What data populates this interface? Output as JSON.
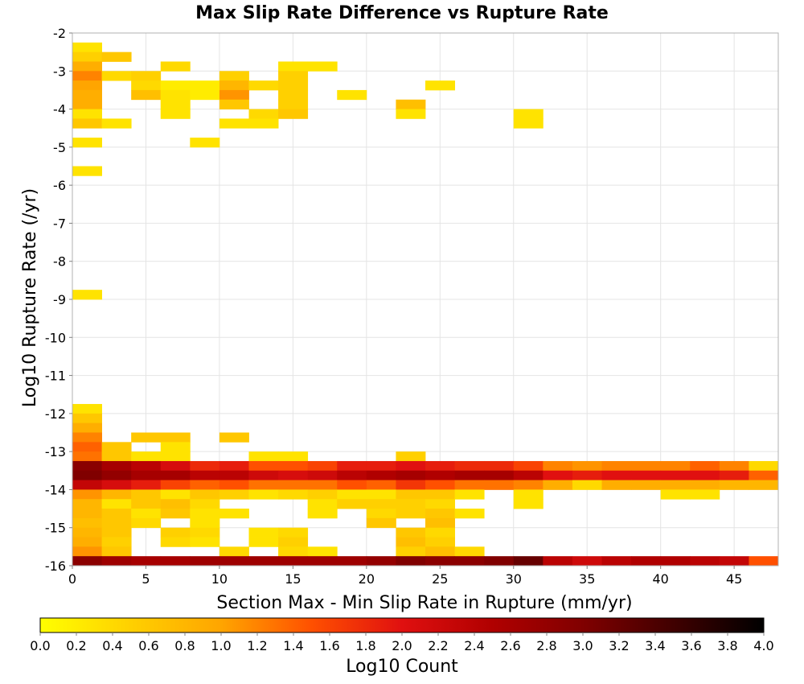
{
  "chart_data": {
    "type": "heatmap",
    "title": "Max Slip Rate Difference vs Rupture Rate",
    "xlabel": "Section Max - Min Slip Rate in Rupture (mm/yr)",
    "ylabel": "Log10 Rupture Rate (/yr)",
    "xlim": [
      0,
      48
    ],
    "ylim": [
      -16,
      -2
    ],
    "x_bin_width": 2,
    "y_bin_height": 0.25,
    "x_ticks": [
      "0",
      "5",
      "10",
      "15",
      "20",
      "25",
      "30",
      "35",
      "40",
      "45"
    ],
    "y_ticks": [
      "-2",
      "-3",
      "-4",
      "-5",
      "-6",
      "-7",
      "-8",
      "-9",
      "-10",
      "-11",
      "-12",
      "-13",
      "-14",
      "-15",
      "-16"
    ],
    "grid": true,
    "colorbar": {
      "label": "Log10 Count",
      "min": 0,
      "max": 4,
      "ticks": [
        "0.0",
        "0.2",
        "0.4",
        "0.6",
        "0.8",
        "1.0",
        "1.2",
        "1.4",
        "1.6",
        "1.8",
        "2.0",
        "2.2",
        "2.4",
        "2.6",
        "2.8",
        "3.0",
        "3.2",
        "3.4",
        "3.6",
        "3.8",
        "4.0"
      ],
      "palette": [
        "#ffff00",
        "#ffd000",
        "#ffa500",
        "#ff5000",
        "#e01010",
        "#b00000",
        "#800000",
        "#400000",
        "#000000"
      ]
    },
    "columns": [
      "x_left",
      "y_bottom",
      "log10_count"
    ],
    "cells": [
      [
        0,
        -2.5,
        0.3
      ],
      [
        0,
        -2.75,
        0.5
      ],
      [
        2,
        -2.75,
        0.6
      ],
      [
        0,
        -3.0,
        0.9
      ],
      [
        6,
        -3.0,
        0.4
      ],
      [
        14,
        -3.0,
        0.3
      ],
      [
        16,
        -3.0,
        0.3
      ],
      [
        0,
        -3.25,
        1.2
      ],
      [
        2,
        -3.25,
        0.4
      ],
      [
        4,
        -3.25,
        0.5
      ],
      [
        10,
        -3.25,
        0.5
      ],
      [
        14,
        -3.25,
        0.5
      ],
      [
        0,
        -3.5,
        1.0
      ],
      [
        4,
        -3.5,
        0.4
      ],
      [
        6,
        -3.5,
        0.2
      ],
      [
        8,
        -3.5,
        0.2
      ],
      [
        10,
        -3.5,
        0.8
      ],
      [
        12,
        -3.5,
        0.4
      ],
      [
        14,
        -3.5,
        0.5
      ],
      [
        24,
        -3.5,
        0.3
      ],
      [
        0,
        -3.75,
        0.9
      ],
      [
        4,
        -3.75,
        0.7
      ],
      [
        6,
        -3.75,
        0.3
      ],
      [
        8,
        -3.75,
        0.2
      ],
      [
        10,
        -3.75,
        1.1
      ],
      [
        14,
        -3.75,
        0.5
      ],
      [
        18,
        -3.75,
        0.3
      ],
      [
        0,
        -4.0,
        0.9
      ],
      [
        6,
        -4.0,
        0.3
      ],
      [
        10,
        -4.0,
        0.6
      ],
      [
        14,
        -4.0,
        0.5
      ],
      [
        22,
        -4.0,
        0.7
      ],
      [
        0,
        -4.25,
        0.3
      ],
      [
        6,
        -4.25,
        0.3
      ],
      [
        12,
        -4.25,
        0.4
      ],
      [
        14,
        -4.25,
        0.6
      ],
      [
        22,
        -4.25,
        0.3
      ],
      [
        30,
        -4.25,
        0.3
      ],
      [
        0,
        -4.5,
        0.6
      ],
      [
        2,
        -4.5,
        0.3
      ],
      [
        10,
        -4.5,
        0.3
      ],
      [
        12,
        -4.5,
        0.3
      ],
      [
        30,
        -4.5,
        0.3
      ],
      [
        0,
        -5.0,
        0.3
      ],
      [
        8,
        -5.0,
        0.3
      ],
      [
        0,
        -5.75,
        0.3
      ],
      [
        0,
        -9.0,
        0.3
      ],
      [
        0,
        -12.0,
        0.3
      ],
      [
        0,
        -12.25,
        0.6
      ],
      [
        0,
        -12.5,
        0.9
      ],
      [
        0,
        -12.75,
        1.2
      ],
      [
        4,
        -12.75,
        0.6
      ],
      [
        6,
        -12.75,
        0.6
      ],
      [
        10,
        -12.75,
        0.6
      ],
      [
        0,
        -13.0,
        1.4
      ],
      [
        2,
        -13.0,
        0.6
      ],
      [
        6,
        -13.0,
        0.3
      ],
      [
        0,
        -13.25,
        1.3
      ],
      [
        2,
        -13.25,
        0.6
      ],
      [
        4,
        -13.25,
        0.3
      ],
      [
        6,
        -13.25,
        0.3
      ],
      [
        12,
        -13.25,
        0.3
      ],
      [
        14,
        -13.25,
        0.3
      ],
      [
        22,
        -13.25,
        0.5
      ],
      [
        0,
        -13.5,
        2.9
      ],
      [
        2,
        -13.5,
        2.6
      ],
      [
        4,
        -13.5,
        2.4
      ],
      [
        6,
        -13.5,
        2.1
      ],
      [
        8,
        -13.5,
        1.8
      ],
      [
        10,
        -13.5,
        1.9
      ],
      [
        12,
        -13.5,
        1.5
      ],
      [
        14,
        -13.5,
        1.5
      ],
      [
        16,
        -13.5,
        1.6
      ],
      [
        18,
        -13.5,
        1.9
      ],
      [
        20,
        -13.5,
        1.9
      ],
      [
        22,
        -13.5,
        2.0
      ],
      [
        24,
        -13.5,
        1.9
      ],
      [
        26,
        -13.5,
        1.8
      ],
      [
        28,
        -13.5,
        1.8
      ],
      [
        30,
        -13.5,
        1.6
      ],
      [
        32,
        -13.5,
        1.2
      ],
      [
        34,
        -13.5,
        1.1
      ],
      [
        36,
        -13.5,
        1.2
      ],
      [
        38,
        -13.5,
        1.2
      ],
      [
        40,
        -13.5,
        1.2
      ],
      [
        42,
        -13.5,
        1.4
      ],
      [
        44,
        -13.5,
        1.2
      ],
      [
        46,
        -13.5,
        0.4
      ],
      [
        0,
        -13.75,
        3.0
      ],
      [
        2,
        -13.75,
        2.8
      ],
      [
        4,
        -13.75,
        2.6
      ],
      [
        6,
        -13.75,
        2.6
      ],
      [
        8,
        -13.75,
        2.4
      ],
      [
        10,
        -13.75,
        2.4
      ],
      [
        12,
        -13.75,
        2.2
      ],
      [
        14,
        -13.75,
        2.1
      ],
      [
        16,
        -13.75,
        2.2
      ],
      [
        18,
        -13.75,
        2.4
      ],
      [
        20,
        -13.75,
        2.5
      ],
      [
        22,
        -13.75,
        2.6
      ],
      [
        24,
        -13.75,
        2.5
      ],
      [
        26,
        -13.75,
        2.6
      ],
      [
        28,
        -13.75,
        2.6
      ],
      [
        30,
        -13.75,
        2.4
      ],
      [
        32,
        -13.75,
        2.0
      ],
      [
        34,
        -13.75,
        1.9
      ],
      [
        36,
        -13.75,
        2.0
      ],
      [
        38,
        -13.75,
        2.0
      ],
      [
        40,
        -13.75,
        2.0
      ],
      [
        42,
        -13.75,
        2.0
      ],
      [
        44,
        -13.75,
        1.9
      ],
      [
        46,
        -13.75,
        1.4
      ],
      [
        0,
        -14.0,
        2.3
      ],
      [
        2,
        -14.0,
        2.1
      ],
      [
        4,
        -14.0,
        1.9
      ],
      [
        6,
        -14.0,
        1.6
      ],
      [
        8,
        -14.0,
        1.4
      ],
      [
        10,
        -14.0,
        1.5
      ],
      [
        12,
        -14.0,
        1.3
      ],
      [
        14,
        -14.0,
        1.3
      ],
      [
        16,
        -14.0,
        1.3
      ],
      [
        18,
        -14.0,
        1.5
      ],
      [
        20,
        -14.0,
        1.4
      ],
      [
        22,
        -14.0,
        1.7
      ],
      [
        24,
        -14.0,
        1.5
      ],
      [
        26,
        -14.0,
        1.3
      ],
      [
        28,
        -14.0,
        1.3
      ],
      [
        30,
        -14.0,
        1.2
      ],
      [
        32,
        -14.0,
        0.9
      ],
      [
        34,
        -14.0,
        0.4
      ],
      [
        36,
        -14.0,
        0.9
      ],
      [
        38,
        -14.0,
        0.9
      ],
      [
        40,
        -14.0,
        0.9
      ],
      [
        42,
        -14.0,
        0.9
      ],
      [
        44,
        -14.0,
        0.8
      ],
      [
        46,
        -14.0,
        0.8
      ],
      [
        0,
        -14.25,
        1.1
      ],
      [
        2,
        -14.25,
        0.8
      ],
      [
        4,
        -14.25,
        0.6
      ],
      [
        6,
        -14.25,
        0.3
      ],
      [
        8,
        -14.25,
        0.6
      ],
      [
        10,
        -14.25,
        0.5
      ],
      [
        12,
        -14.25,
        0.3
      ],
      [
        14,
        -14.25,
        0.4
      ],
      [
        16,
        -14.25,
        0.5
      ],
      [
        18,
        -14.25,
        0.3
      ],
      [
        20,
        -14.25,
        0.3
      ],
      [
        22,
        -14.25,
        0.6
      ],
      [
        24,
        -14.25,
        0.6
      ],
      [
        26,
        -14.25,
        0.3
      ],
      [
        30,
        -14.25,
        0.3
      ],
      [
        40,
        -14.25,
        0.3
      ],
      [
        42,
        -14.25,
        0.3
      ],
      [
        0,
        -14.5,
        0.8
      ],
      [
        2,
        -14.5,
        0.3
      ],
      [
        4,
        -14.5,
        0.6
      ],
      [
        6,
        -14.5,
        0.7
      ],
      [
        8,
        -14.5,
        0.4
      ],
      [
        16,
        -14.5,
        0.3
      ],
      [
        18,
        -14.5,
        0.5
      ],
      [
        20,
        -14.5,
        0.5
      ],
      [
        22,
        -14.5,
        0.5
      ],
      [
        24,
        -14.5,
        0.4
      ],
      [
        30,
        -14.5,
        0.3
      ],
      [
        0,
        -14.75,
        0.8
      ],
      [
        2,
        -14.75,
        0.6
      ],
      [
        4,
        -14.75,
        0.3
      ],
      [
        6,
        -14.75,
        0.6
      ],
      [
        8,
        -14.75,
        0.3
      ],
      [
        10,
        -14.75,
        0.3
      ],
      [
        16,
        -14.75,
        0.3
      ],
      [
        20,
        -14.75,
        0.4
      ],
      [
        22,
        -14.75,
        0.5
      ],
      [
        24,
        -14.75,
        0.6
      ],
      [
        26,
        -14.75,
        0.3
      ],
      [
        0,
        -15.0,
        0.7
      ],
      [
        2,
        -15.0,
        0.6
      ],
      [
        4,
        -15.0,
        0.4
      ],
      [
        8,
        -15.0,
        0.3
      ],
      [
        20,
        -15.0,
        0.6
      ],
      [
        24,
        -15.0,
        0.7
      ],
      [
        0,
        -15.25,
        0.8
      ],
      [
        2,
        -15.25,
        0.6
      ],
      [
        6,
        -15.25,
        0.5
      ],
      [
        8,
        -15.25,
        0.4
      ],
      [
        12,
        -15.25,
        0.3
      ],
      [
        14,
        -15.25,
        0.4
      ],
      [
        22,
        -15.25,
        0.6
      ],
      [
        24,
        -15.25,
        0.4
      ],
      [
        0,
        -15.5,
        0.9
      ],
      [
        2,
        -15.5,
        0.5
      ],
      [
        6,
        -15.5,
        0.4
      ],
      [
        8,
        -15.5,
        0.3
      ],
      [
        12,
        -15.5,
        0.3
      ],
      [
        14,
        -15.5,
        0.5
      ],
      [
        22,
        -15.5,
        0.7
      ],
      [
        24,
        -15.5,
        0.5
      ],
      [
        0,
        -15.75,
        1.1
      ],
      [
        2,
        -15.75,
        0.6
      ],
      [
        10,
        -15.75,
        0.4
      ],
      [
        14,
        -15.75,
        0.4
      ],
      [
        16,
        -15.75,
        0.3
      ],
      [
        22,
        -15.75,
        0.5
      ],
      [
        24,
        -15.75,
        0.7
      ],
      [
        26,
        -15.75,
        0.4
      ],
      [
        0,
        -16.0,
        2.9
      ],
      [
        2,
        -16.0,
        2.7
      ],
      [
        4,
        -16.0,
        2.6
      ],
      [
        6,
        -16.0,
        2.6
      ],
      [
        8,
        -16.0,
        2.7
      ],
      [
        10,
        -16.0,
        2.7
      ],
      [
        12,
        -16.0,
        2.7
      ],
      [
        14,
        -16.0,
        2.7
      ],
      [
        16,
        -16.0,
        2.7
      ],
      [
        18,
        -16.0,
        2.7
      ],
      [
        20,
        -16.0,
        2.8
      ],
      [
        22,
        -16.0,
        3.0
      ],
      [
        24,
        -16.0,
        2.9
      ],
      [
        26,
        -16.0,
        2.9
      ],
      [
        28,
        -16.0,
        3.0
      ],
      [
        30,
        -16.0,
        3.2
      ],
      [
        32,
        -16.0,
        2.4
      ],
      [
        34,
        -16.0,
        2.2
      ],
      [
        36,
        -16.0,
        2.4
      ],
      [
        38,
        -16.0,
        2.5
      ],
      [
        40,
        -16.0,
        2.5
      ],
      [
        42,
        -16.0,
        2.4
      ],
      [
        44,
        -16.0,
        2.3
      ],
      [
        46,
        -16.0,
        1.5
      ]
    ]
  }
}
